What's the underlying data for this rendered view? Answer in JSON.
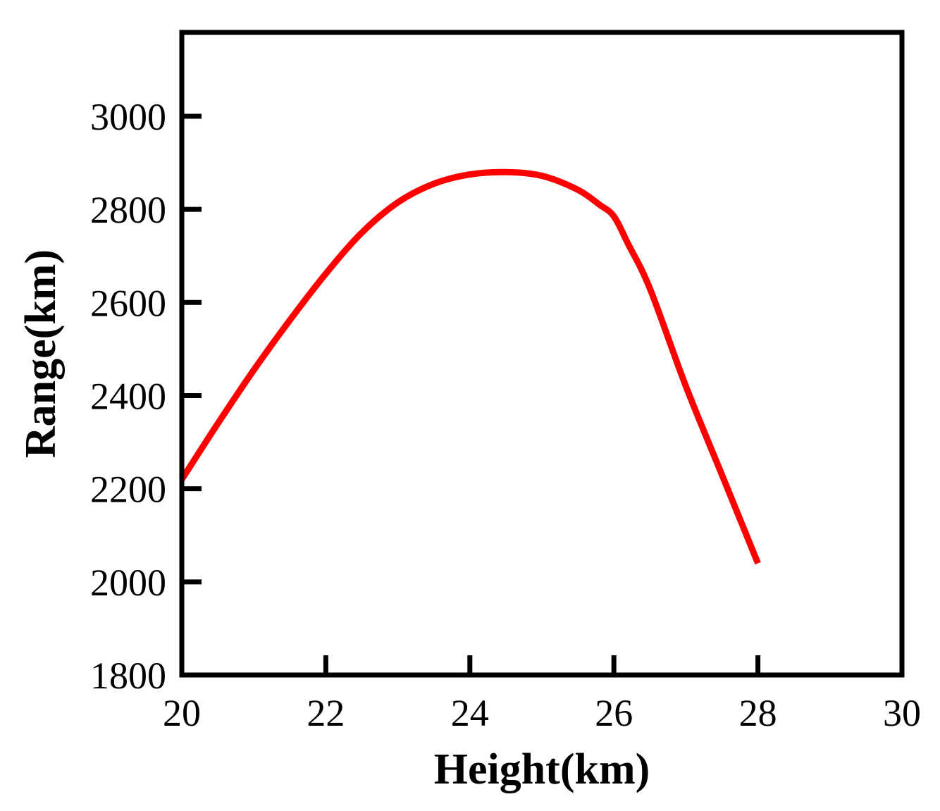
{
  "chart_data": {
    "type": "line",
    "title": "",
    "xlabel": "Height(km)",
    "ylabel": "Range(km)",
    "xlim": [
      20,
      30
    ],
    "ylim": [
      1800,
      3180
    ],
    "x_ticks": [
      20,
      22,
      24,
      26,
      28,
      30
    ],
    "y_ticks": [
      1800,
      2000,
      2200,
      2400,
      2600,
      2800,
      3000
    ],
    "x_tick_labels": [
      "20",
      "22",
      "24",
      "26",
      "28",
      "30"
    ],
    "y_tick_labels": [
      "1800",
      "2000",
      "2200",
      "2400",
      "2600",
      "2800",
      "3000"
    ],
    "grid": false,
    "legend": "none",
    "series": [
      {
        "color": "#ff0000",
        "x": [
          20,
          20.5,
          21,
          21.5,
          22,
          22.5,
          23,
          23.5,
          24,
          24.5,
          25,
          25.5,
          25.8,
          26,
          26.2,
          26.5,
          27,
          27.5,
          28
        ],
        "y": [
          2220,
          2340,
          2455,
          2562,
          2662,
          2750,
          2815,
          2855,
          2875,
          2880,
          2872,
          2842,
          2810,
          2785,
          2725,
          2630,
          2420,
          2230,
          2040
        ]
      }
    ]
  }
}
